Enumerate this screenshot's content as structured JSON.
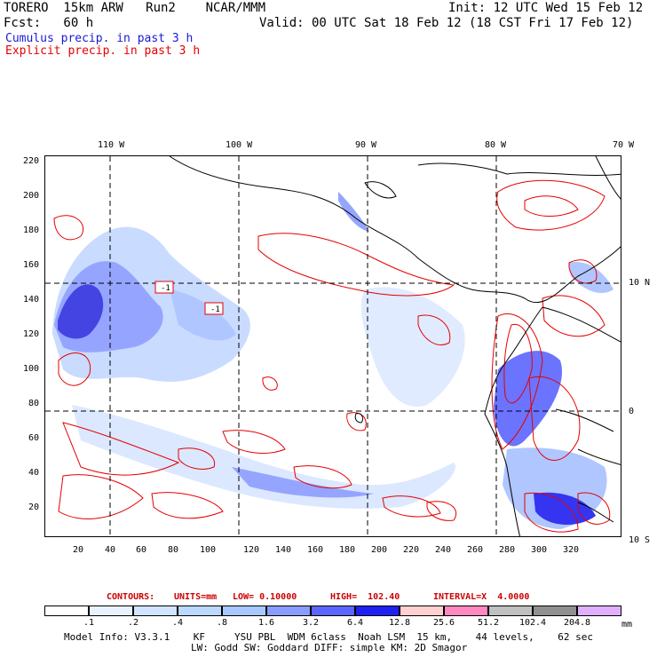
{
  "header": {
    "model": "TORERO  15km ARW   Run2    NCAR/MMM",
    "init": "Init: 12 UTC Wed 15 Feb 12",
    "fcst": "Fcst:   60 h",
    "valid": "Valid: 00 UTC Sat 18 Feb 12 (18 CST Fri 17 Feb 12)",
    "cumulus": "Cumulus precip. in past 3 h",
    "explicit": "Explicit precip. in past 3 h"
  },
  "colors": {
    "cumulus_text": "#1a1ad6",
    "explicit_text": "#e60000",
    "contour": "#e60000",
    "land": "#000000"
  },
  "lon_labels": [
    "110 W",
    "100 W",
    "90 W",
    "80 W",
    "70 W"
  ],
  "lat_labels": [
    "10 N",
    "0",
    "10 S"
  ],
  "y_ticks": [
    "220",
    "200",
    "180",
    "160",
    "140",
    "120",
    "100",
    "80",
    "60",
    "40",
    "20"
  ],
  "x_ticks": [
    "20",
    "40",
    "60",
    "80",
    "100",
    "120",
    "140",
    "160",
    "180",
    "200",
    "220",
    "240",
    "260",
    "280",
    "300",
    "320"
  ],
  "contour_annotation": [
    "-1",
    "-1"
  ],
  "contours_line": {
    "label": "CONTOURS:",
    "units": "UNITS=mm",
    "low": "LOW= 0.10000",
    "high": "HIGH=  102.40",
    "interval": "INTERVAL=X  4.0000"
  },
  "legend": {
    "units": "mm",
    "labels": [
      ".1",
      ".2",
      ".4",
      ".8",
      "1.6",
      "3.2",
      "6.4",
      "12.8",
      "25.6",
      "51.2",
      "102.4",
      "204.8"
    ],
    "colors": [
      "#ffffff",
      "#e8f2ff",
      "#d0e4ff",
      "#bcd8ff",
      "#a8c8ff",
      "#8a9cff",
      "#5c66ff",
      "#2020f0",
      "#ffd0d0",
      "#ff88c0",
      "#c0c0c0",
      "#909090",
      "#e0b0ff"
    ]
  },
  "model_info": {
    "line1": "Model Info: V3.3.1    KF     YSU PBL  WDM 6class  Noah LSM  15 km,    44 levels,    62 sec",
    "line2": "LW: Godd SW: Goddard DIFF: simple KM: 2D Smagor"
  }
}
